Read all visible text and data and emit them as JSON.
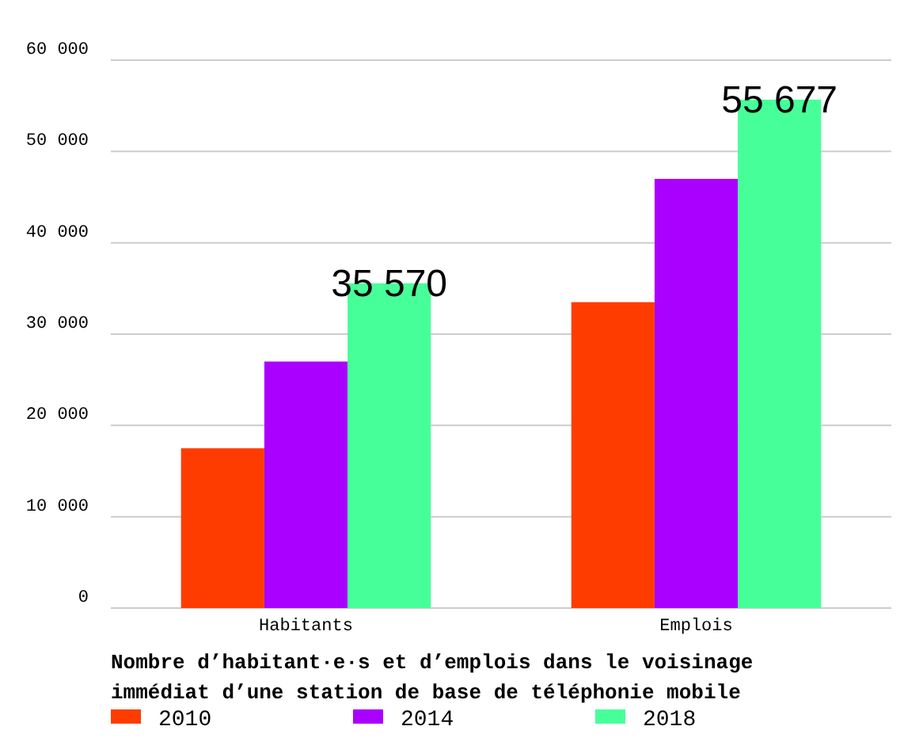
{
  "chart_data": {
    "type": "bar",
    "title": "Nombre d’habitant·e·s et d’emplois dans le voisinage immédiat d’une station de base de téléphonie mobile",
    "categories": [
      "Habitants",
      "Emplois"
    ],
    "series": [
      {
        "name": "2010",
        "color": "#ff3c00",
        "values": [
          17500,
          33500
        ]
      },
      {
        "name": "2014",
        "color": "#aa00ff",
        "values": [
          27000,
          47000
        ]
      },
      {
        "name": "2018",
        "color": "#47ff99",
        "values": [
          35570,
          55677
        ],
        "value_labels": [
          "35 570",
          "55 677"
        ]
      }
    ],
    "ylim": [
      0,
      60000
    ],
    "yticks": [
      {
        "value": 0,
        "label": "0"
      },
      {
        "value": 10000,
        "label": "10 000"
      },
      {
        "value": 20000,
        "label": "20 000"
      },
      {
        "value": 30000,
        "label": "30 000"
      },
      {
        "value": 40000,
        "label": "40 000"
      },
      {
        "value": 50000,
        "label": "50 000"
      },
      {
        "value": 60000,
        "label": "60 000"
      }
    ],
    "grid": "y",
    "legend": "bottom"
  }
}
